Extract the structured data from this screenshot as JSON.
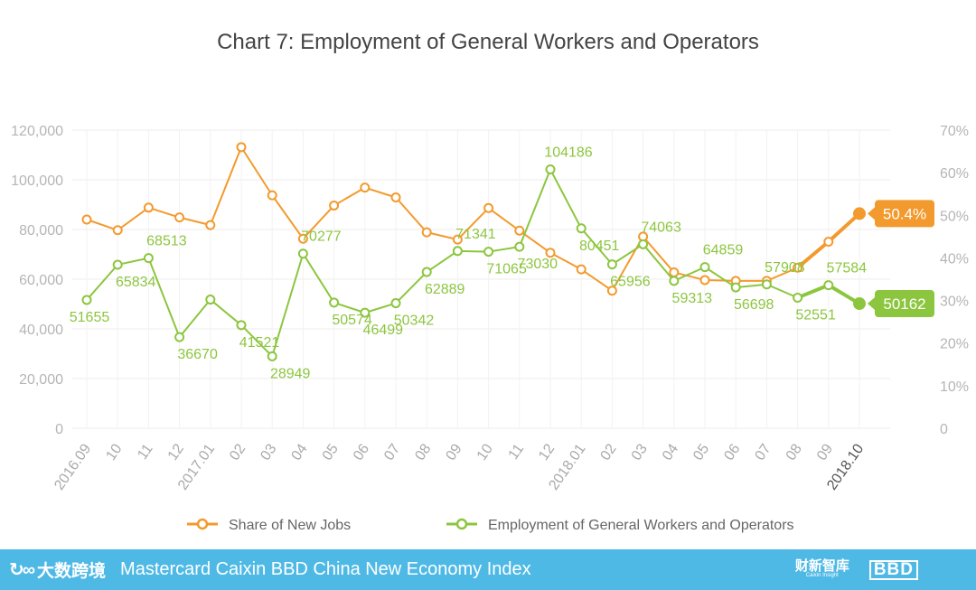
{
  "chart_data": {
    "type": "line",
    "title": "Chart 7: Employment of General Workers and Operators",
    "categories": [
      "2016.09",
      "10",
      "11",
      "12",
      "2017.01",
      "02",
      "03",
      "04",
      "05",
      "06",
      "07",
      "08",
      "09",
      "10",
      "11",
      "12",
      "2018.01",
      "02",
      "03",
      "04",
      "05",
      "06",
      "07",
      "08",
      "09",
      "2018.10"
    ],
    "bold_categories": [
      "2018.10"
    ],
    "y_left": {
      "min": 0,
      "max": 120000,
      "ticks": [
        "0",
        "20,000",
        "40,000",
        "60,000",
        "80,000",
        "100,000",
        "120,000"
      ]
    },
    "y_right": {
      "min": 0,
      "max": 70,
      "ticks": [
        "0",
        "10%",
        "20%",
        "30%",
        "40%",
        "50%",
        "60%",
        "70%"
      ]
    },
    "series": [
      {
        "name": "Share of New Jobs",
        "axis": "right",
        "color": "#f39a2e",
        "values": [
          49.0,
          46.5,
          51.8,
          49.5,
          47.7,
          66.0,
          54.7,
          44.5,
          52.3,
          56.5,
          54.2,
          46.0,
          44.3,
          51.7,
          46.4,
          41.2,
          37.3,
          32.3,
          45.0,
          36.6,
          34.8,
          34.6,
          34.6,
          37.7,
          43.8,
          50.4
        ],
        "end_label": "50.4%"
      },
      {
        "name": "Employment of General Workers and Operators",
        "axis": "left",
        "color": "#8cc63f",
        "values": [
          51655,
          65834,
          68513,
          36670,
          51800,
          41521,
          28949,
          70277,
          50574,
          46499,
          50342,
          62889,
          71341,
          71065,
          73030,
          104186,
          80451,
          65956,
          74063,
          59313,
          64859,
          56698,
          57908,
          52551,
          57584,
          50162
        ],
        "data_labels": [
          "51655",
          "65834",
          "68513",
          "36670",
          "",
          "41521",
          "28949",
          "70277",
          "50574",
          "46499",
          "50342",
          "62889",
          "71341",
          "71065",
          "73030",
          "104186",
          "80451",
          "65956",
          "74063",
          "59313",
          "64859",
          "56698",
          "57908",
          "52551",
          "57584",
          ""
        ],
        "end_label": "50162"
      }
    ],
    "legend_position": "bottom"
  },
  "footer": {
    "logo_text": "大数跨境",
    "title": "Mastercard Caixin BBD China New Economy Index",
    "caixin_logo": "财新智库",
    "caixin_sub": "Caixin Insight",
    "bbd_logo": "BBD"
  }
}
